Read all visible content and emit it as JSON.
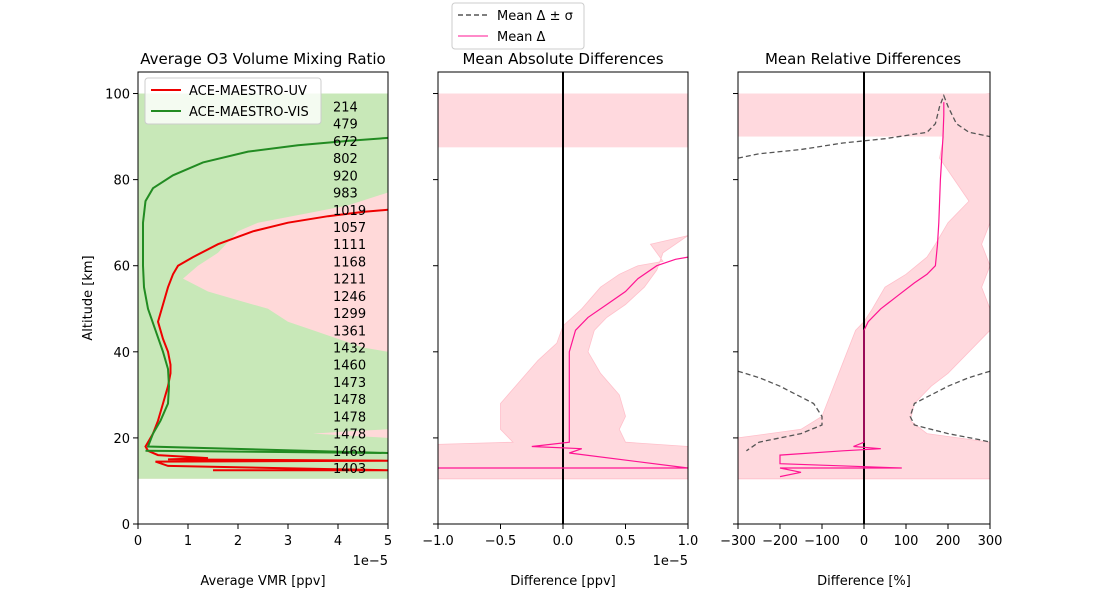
{
  "figure_legend": {
    "entries": [
      {
        "label": "Mean Δ ± σ",
        "color": "#555555",
        "style": "dashed"
      },
      {
        "label": "Mean Δ",
        "color": "#ff1493",
        "style": "solid"
      }
    ]
  },
  "chart_data": [
    {
      "type": "line",
      "title": "Average O3 Volume Mixing Ratio",
      "xlabel": "Average VMR [ppv]",
      "ylabel": "Altitude [km]",
      "x_multiplier_label": "1e−5",
      "xlim": [
        0,
        5
      ],
      "ylim": [
        0,
        105
      ],
      "xticks": [
        "0",
        "1",
        "2",
        "3",
        "4",
        "5"
      ],
      "yticks": [
        "0",
        "20",
        "40",
        "60",
        "80",
        "100"
      ],
      "legend": {
        "placement": "top-left",
        "entries": [
          "ACE-MAESTRO-UV",
          "ACE-MAESTRO-VIS"
        ]
      },
      "series": [
        {
          "name": "ACE-MAESTRO-UV",
          "color": "#ee0000",
          "points": [
            [
              1.5,
              12.5
            ],
            [
              5,
              12.5
            ],
            [
              0.6,
              13.5
            ],
            [
              0.35,
              14.5
            ],
            [
              5,
              14.7
            ],
            [
              0.6,
              15.0
            ],
            [
              1.4,
              15.3
            ],
            [
              0.4,
              16.0
            ],
            [
              0.2,
              17.0
            ],
            [
              0.15,
              18.0
            ],
            [
              0.2,
              19.0
            ],
            [
              0.3,
              21.0
            ],
            [
              0.4,
              24.0
            ],
            [
              0.5,
              28.0
            ],
            [
              0.6,
              32.0
            ],
            [
              0.65,
              35.0
            ],
            [
              0.65,
              37.0
            ],
            [
              0.6,
              40.0
            ],
            [
              0.5,
              43.0
            ],
            [
              0.4,
              47.0
            ],
            [
              0.5,
              51.0
            ],
            [
              0.6,
              55.0
            ],
            [
              0.7,
              58.0
            ],
            [
              0.8,
              60.0
            ],
            [
              1.1,
              62.0
            ],
            [
              1.6,
              65.0
            ],
            [
              2.3,
              68.0
            ],
            [
              3.0,
              70.0
            ],
            [
              3.8,
              71.5
            ],
            [
              4.5,
              72.5
            ],
            [
              5.0,
              73.0
            ]
          ]
        },
        {
          "name": "ACE-MAESTRO-VIS",
          "color": "#228b22",
          "points": [
            [
              0.15,
              17.0
            ],
            [
              5,
              16.5
            ],
            [
              0.2,
              18.0
            ],
            [
              0.3,
              21.0
            ],
            [
              0.45,
              24.0
            ],
            [
              0.6,
              28.0
            ],
            [
              0.62,
              32.0
            ],
            [
              0.6,
              36.0
            ],
            [
              0.5,
              40.0
            ],
            [
              0.35,
              45.0
            ],
            [
              0.2,
              50.0
            ],
            [
              0.12,
              55.0
            ],
            [
              0.1,
              60.0
            ],
            [
              0.1,
              65.0
            ],
            [
              0.1,
              70.0
            ],
            [
              0.15,
              75.0
            ],
            [
              0.3,
              78.0
            ],
            [
              0.7,
              81.0
            ],
            [
              1.3,
              84.0
            ],
            [
              2.2,
              86.5
            ],
            [
              3.2,
              88.0
            ],
            [
              4.2,
              89.0
            ],
            [
              5.0,
              89.7
            ]
          ]
        }
      ],
      "uv_band": {
        "color": "#ffd9d9",
        "points": [
          [
            5,
            10.5
          ],
          [
            5,
            100
          ],
          [
            0,
            100
          ],
          [
            0,
            10.5
          ]
        ]
      },
      "vis_band": {
        "color": "#c8e8b8",
        "points": [
          [
            0,
            10.5
          ],
          [
            0,
            100
          ],
          [
            5,
            100
          ],
          [
            5,
            77
          ],
          [
            4.2,
            74
          ],
          [
            3.3,
            72
          ],
          [
            2.4,
            70
          ],
          [
            2.0,
            68
          ],
          [
            1.6,
            63
          ],
          [
            1.2,
            60
          ],
          [
            0.9,
            57
          ],
          [
            1.4,
            54
          ],
          [
            2.0,
            52
          ],
          [
            2.6,
            50
          ],
          [
            3.0,
            47
          ],
          [
            3.5,
            45
          ],
          [
            4.0,
            43
          ],
          [
            4.5,
            41
          ],
          [
            5,
            40
          ],
          [
            5,
            22
          ],
          [
            4.2,
            21.5
          ],
          [
            3.5,
            21
          ],
          [
            5,
            20
          ],
          [
            5,
            10.5
          ]
        ]
      },
      "overlap_color": "#c8f5c8",
      "counts": [
        "214",
        "479",
        "672",
        "802",
        "920",
        "983",
        "1019",
        "1057",
        "1111",
        "1168",
        "1211",
        "1246",
        "1299",
        "1361",
        "1432",
        "1460",
        "1473",
        "1478",
        "1478",
        "1478",
        "1469",
        "1403"
      ],
      "count_altitudes": [
        97,
        93,
        89,
        85,
        81,
        77,
        73,
        69,
        65,
        61,
        57,
        53,
        49,
        45,
        41,
        37,
        33,
        29,
        25,
        21,
        17,
        13
      ]
    },
    {
      "type": "line",
      "title": "Mean Absolute Differences",
      "xlabel": "Difference [ppv]",
      "ylabel": "",
      "x_multiplier_label": "1e−5",
      "xlim": [
        -1,
        1
      ],
      "ylim": [
        0,
        105
      ],
      "xticks": [
        "−1.0",
        "−0.5",
        "0.0",
        "0.5",
        "1.0"
      ],
      "zero_line": true,
      "series": [
        {
          "name": "",
          "color": "#ff1493",
          "points": [
            [
              -1,
              13.0
            ],
            [
              1,
              13.0
            ],
            [
              0.05,
              16.5
            ],
            [
              0.15,
              17.5
            ],
            [
              -0.25,
              18.0
            ],
            [
              0.05,
              19.0
            ],
            [
              0.05,
              25.0
            ],
            [
              0.05,
              30.0
            ],
            [
              0.05,
              35.0
            ],
            [
              0.05,
              40.0
            ],
            [
              0.1,
              45.0
            ],
            [
              0.2,
              48.0
            ],
            [
              0.35,
              51.0
            ],
            [
              0.5,
              54.0
            ],
            [
              0.6,
              57.0
            ],
            [
              0.75,
              60.0
            ],
            [
              0.9,
              61.5
            ],
            [
              1.0,
              62.0
            ]
          ]
        }
      ],
      "sigma_band": {
        "color": "#ffd9de",
        "points": [
          [
            -1,
            10.5
          ],
          [
            1,
            10.5
          ],
          [
            1,
            18
          ],
          [
            0.5,
            19
          ],
          [
            0.45,
            22
          ],
          [
            0.5,
            25
          ],
          [
            0.45,
            30
          ],
          [
            0.3,
            35
          ],
          [
            0.2,
            40
          ],
          [
            0.25,
            45
          ],
          [
            0.35,
            48
          ],
          [
            0.5,
            51
          ],
          [
            0.65,
            55
          ],
          [
            0.75,
            59
          ],
          [
            0.8,
            63
          ],
          [
            1.0,
            67
          ],
          [
            0.7,
            65
          ],
          [
            0.8,
            61
          ],
          [
            0.6,
            60
          ],
          [
            0.45,
            58
          ],
          [
            0.3,
            55
          ],
          [
            0.15,
            50
          ],
          [
            0.0,
            46
          ],
          [
            -0.05,
            42
          ],
          [
            -0.2,
            38
          ],
          [
            -0.35,
            33
          ],
          [
            -0.5,
            28
          ],
          [
            -0.5,
            22
          ],
          [
            -0.4,
            19
          ],
          [
            -1,
            18.5
          ]
        ]
      },
      "top_band": {
        "color": "#ffd9de",
        "y_range": [
          87.5,
          100
        ]
      }
    },
    {
      "type": "line",
      "title": "Mean Relative Differences",
      "xlabel": "Difference [%]",
      "ylabel": "",
      "xlim": [
        -300,
        300
      ],
      "ylim": [
        0,
        105
      ],
      "xticks": [
        "−300",
        "−200",
        "−100",
        "0",
        "100",
        "200",
        "300"
      ],
      "zero_line": true,
      "series": [
        {
          "name": "Mean Δ",
          "color": "#ff1493",
          "points": [
            [
              -200,
              11
            ],
            [
              -150,
              12
            ],
            [
              -200,
              13
            ],
            [
              90,
              13
            ],
            [
              -200,
              14
            ],
            [
              -200,
              16
            ],
            [
              -50,
              17
            ],
            [
              40,
              17.5
            ],
            [
              -25,
              18
            ],
            [
              0,
              19
            ],
            [
              0,
              25
            ],
            [
              0,
              30
            ],
            [
              0,
              35
            ],
            [
              0,
              40
            ],
            [
              0,
              45
            ],
            [
              10,
              47
            ],
            [
              40,
              50
            ],
            [
              80,
              53
            ],
            [
              120,
              56
            ],
            [
              150,
              58
            ],
            [
              170,
              60
            ],
            [
              175,
              65
            ],
            [
              178,
              70
            ],
            [
              180,
              75
            ],
            [
              182,
              80
            ],
            [
              185,
              85
            ],
            [
              188,
              90
            ],
            [
              190,
              95
            ],
            [
              190,
              98
            ]
          ]
        },
        {
          "name": "Mean Δ ± σ",
          "color": "#555555",
          "segments": [
            [
              [
                -300,
                85
              ],
              [
                -250,
                86
              ],
              [
                -150,
                87
              ],
              [
                -50,
                88.5
              ],
              [
                50,
                89.5
              ],
              [
                150,
                91
              ],
              [
                170,
                93
              ],
              [
                180,
                97
              ],
              [
                190,
                99.5
              ],
              [
                200,
                97
              ],
              [
                220,
                93
              ],
              [
                250,
                91
              ],
              [
                300,
                90
              ]
            ],
            [
              [
                -300,
                35.5
              ],
              [
                -250,
                34
              ],
              [
                -200,
                32
              ],
              [
                -120,
                28
              ],
              [
                -100,
                25
              ],
              [
                -100,
                23
              ],
              [
                -150,
                21
              ],
              [
                -250,
                19
              ],
              [
                -280,
                17
              ]
            ],
            [
              [
                300,
                35.5
              ],
              [
                250,
                34
              ],
              [
                200,
                32
              ],
              [
                120,
                28
              ],
              [
                110,
                25
              ],
              [
                120,
                23
              ],
              [
                200,
                21
              ],
              [
                280,
                19.5
              ],
              [
                300,
                19
              ]
            ]
          ]
        }
      ],
      "sigma_band": {
        "color": "#ffd9de",
        "points": [
          [
            -300,
            10.5
          ],
          [
            300,
            10.5
          ],
          [
            300,
            19
          ],
          [
            150,
            21
          ],
          [
            110,
            24
          ],
          [
            120,
            28
          ],
          [
            160,
            32
          ],
          [
            200,
            35
          ],
          [
            250,
            40
          ],
          [
            300,
            45
          ],
          [
            300,
            50
          ],
          [
            280,
            55
          ],
          [
            300,
            60
          ],
          [
            280,
            65
          ],
          [
            300,
            70
          ],
          [
            300,
            100
          ],
          [
            200,
            99
          ],
          [
            180,
            95
          ],
          [
            190,
            90
          ],
          [
            180,
            85
          ],
          [
            250,
            75
          ],
          [
            200,
            70
          ],
          [
            170,
            65
          ],
          [
            150,
            62
          ],
          [
            100,
            58
          ],
          [
            50,
            55
          ],
          [
            20,
            50
          ],
          [
            0,
            47
          ],
          [
            -20,
            45
          ],
          [
            -40,
            40
          ],
          [
            -60,
            35
          ],
          [
            -80,
            30
          ],
          [
            -100,
            25
          ],
          [
            -150,
            22
          ],
          [
            -300,
            20
          ]
        ]
      },
      "top_band": {
        "color": "#ffd9de",
        "y_range": [
          90,
          100
        ],
        "x_range": [
          -300,
          300
        ]
      }
    }
  ]
}
